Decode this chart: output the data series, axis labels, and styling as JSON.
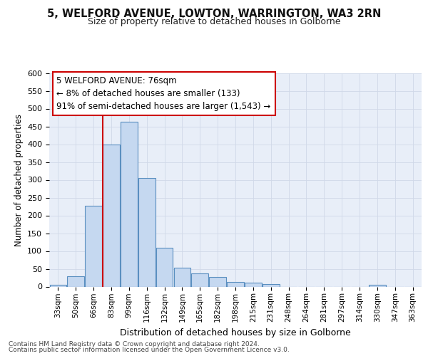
{
  "title1": "5, WELFORD AVENUE, LOWTON, WARRINGTON, WA3 2RN",
  "title2": "Size of property relative to detached houses in Golborne",
  "xlabel": "Distribution of detached houses by size in Golborne",
  "ylabel": "Number of detached properties",
  "categories": [
    "33sqm",
    "50sqm",
    "66sqm",
    "83sqm",
    "99sqm",
    "116sqm",
    "132sqm",
    "149sqm",
    "165sqm",
    "182sqm",
    "198sqm",
    "215sqm",
    "231sqm",
    "248sqm",
    "264sqm",
    "281sqm",
    "297sqm",
    "314sqm",
    "330sqm",
    "347sqm",
    "363sqm"
  ],
  "values": [
    5,
    30,
    228,
    400,
    463,
    305,
    110,
    54,
    38,
    28,
    14,
    11,
    7,
    0,
    0,
    0,
    0,
    0,
    5,
    0,
    0
  ],
  "bar_color": "#c5d8f0",
  "bar_edge_color": "#5a8fc0",
  "vline_color": "#cc0000",
  "annotation_text": "5 WELFORD AVENUE: 76sqm\n← 8% of detached houses are smaller (133)\n91% of semi-detached houses are larger (1,543) →",
  "annotation_box_color": "#ffffff",
  "annotation_box_edge": "#cc0000",
  "ylim": [
    0,
    600
  ],
  "yticks": [
    0,
    50,
    100,
    150,
    200,
    250,
    300,
    350,
    400,
    450,
    500,
    550,
    600
  ],
  "footer1": "Contains HM Land Registry data © Crown copyright and database right 2024.",
  "footer2": "Contains public sector information licensed under the Open Government Licence v3.0.",
  "bg_color": "#ffffff",
  "plot_bg_color": "#e8eef8"
}
